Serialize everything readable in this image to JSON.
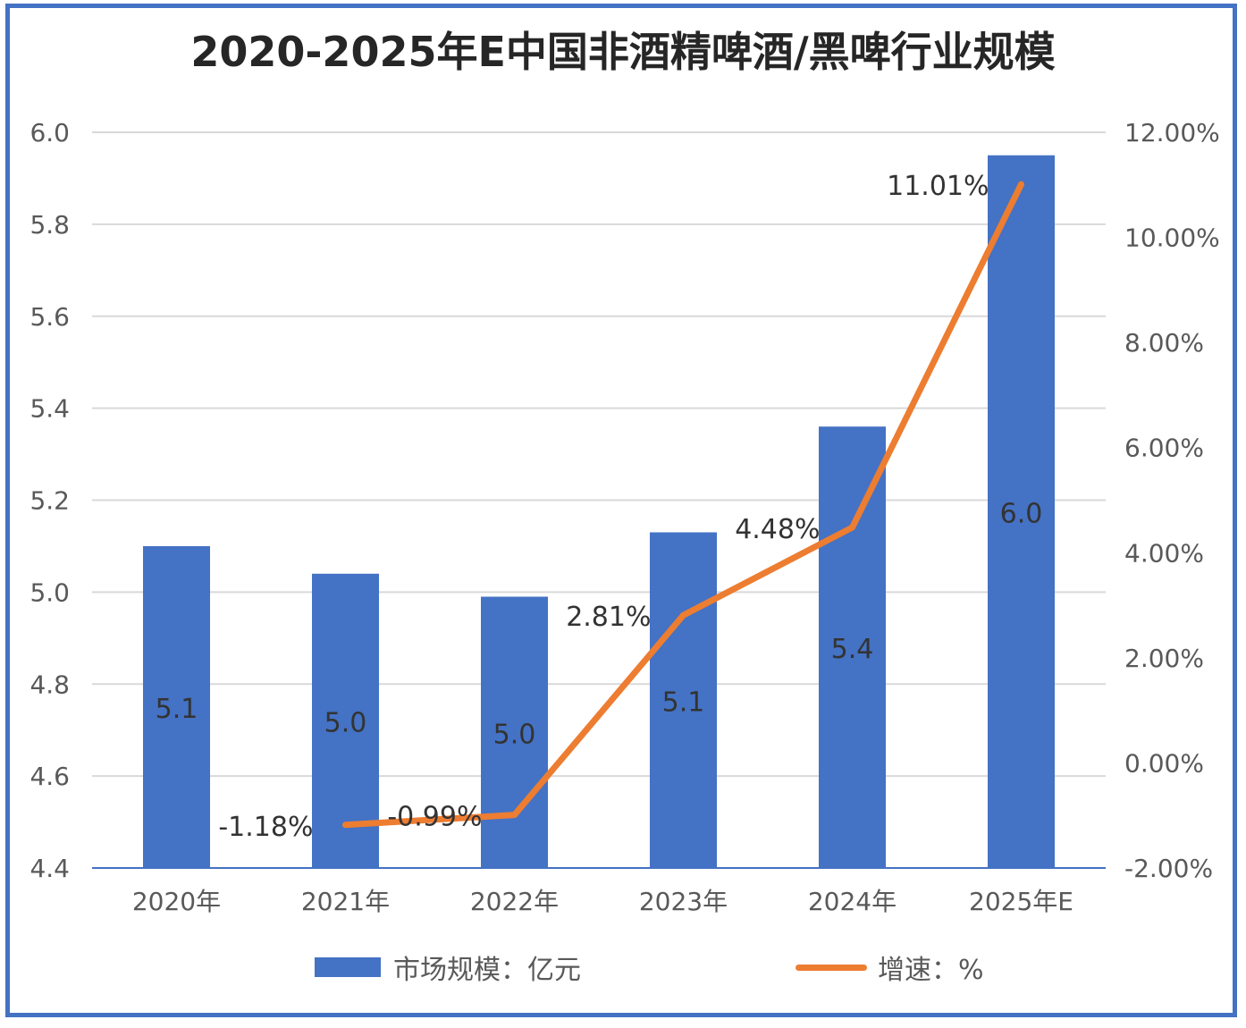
{
  "chart_data": {
    "type": "bar+line",
    "title": "2020-2025年E中国非酒精啤酒/黑啤行业规模",
    "categories": [
      "2020年",
      "2021年",
      "2022年",
      "2023年",
      "2024年",
      "2025年E"
    ],
    "series": [
      {
        "name": "市场规模：亿元",
        "type": "bar",
        "axis": "left",
        "color": "#4472C4",
        "values": [
          5.1,
          5.04,
          4.99,
          5.13,
          5.36,
          5.95
        ],
        "labels": [
          "5.1",
          "5.0",
          "5.0",
          "5.1",
          "5.4",
          "6.0"
        ]
      },
      {
        "name": "增速：%",
        "type": "line",
        "axis": "right",
        "color": "#ED7D31",
        "values": [
          null,
          -1.18,
          -0.99,
          2.81,
          4.48,
          11.01
        ],
        "labels": [
          "",
          "-1.18%",
          "-0.99%",
          "2.81%",
          "4.48%",
          "11.01%"
        ]
      }
    ],
    "y_left": {
      "range": [
        4.4,
        6.0
      ],
      "ticks": [
        "4.4",
        "4.6",
        "4.8",
        "5.0",
        "5.2",
        "5.4",
        "5.6",
        "5.8",
        "6.0"
      ]
    },
    "y_right": {
      "range": [
        -2,
        12
      ],
      "ticks": [
        "-2.00%",
        "0.00%",
        "2.00%",
        "4.00%",
        "6.00%",
        "8.00%",
        "10.00%",
        "12.00%"
      ]
    },
    "grid": true,
    "legend": "bottom"
  }
}
